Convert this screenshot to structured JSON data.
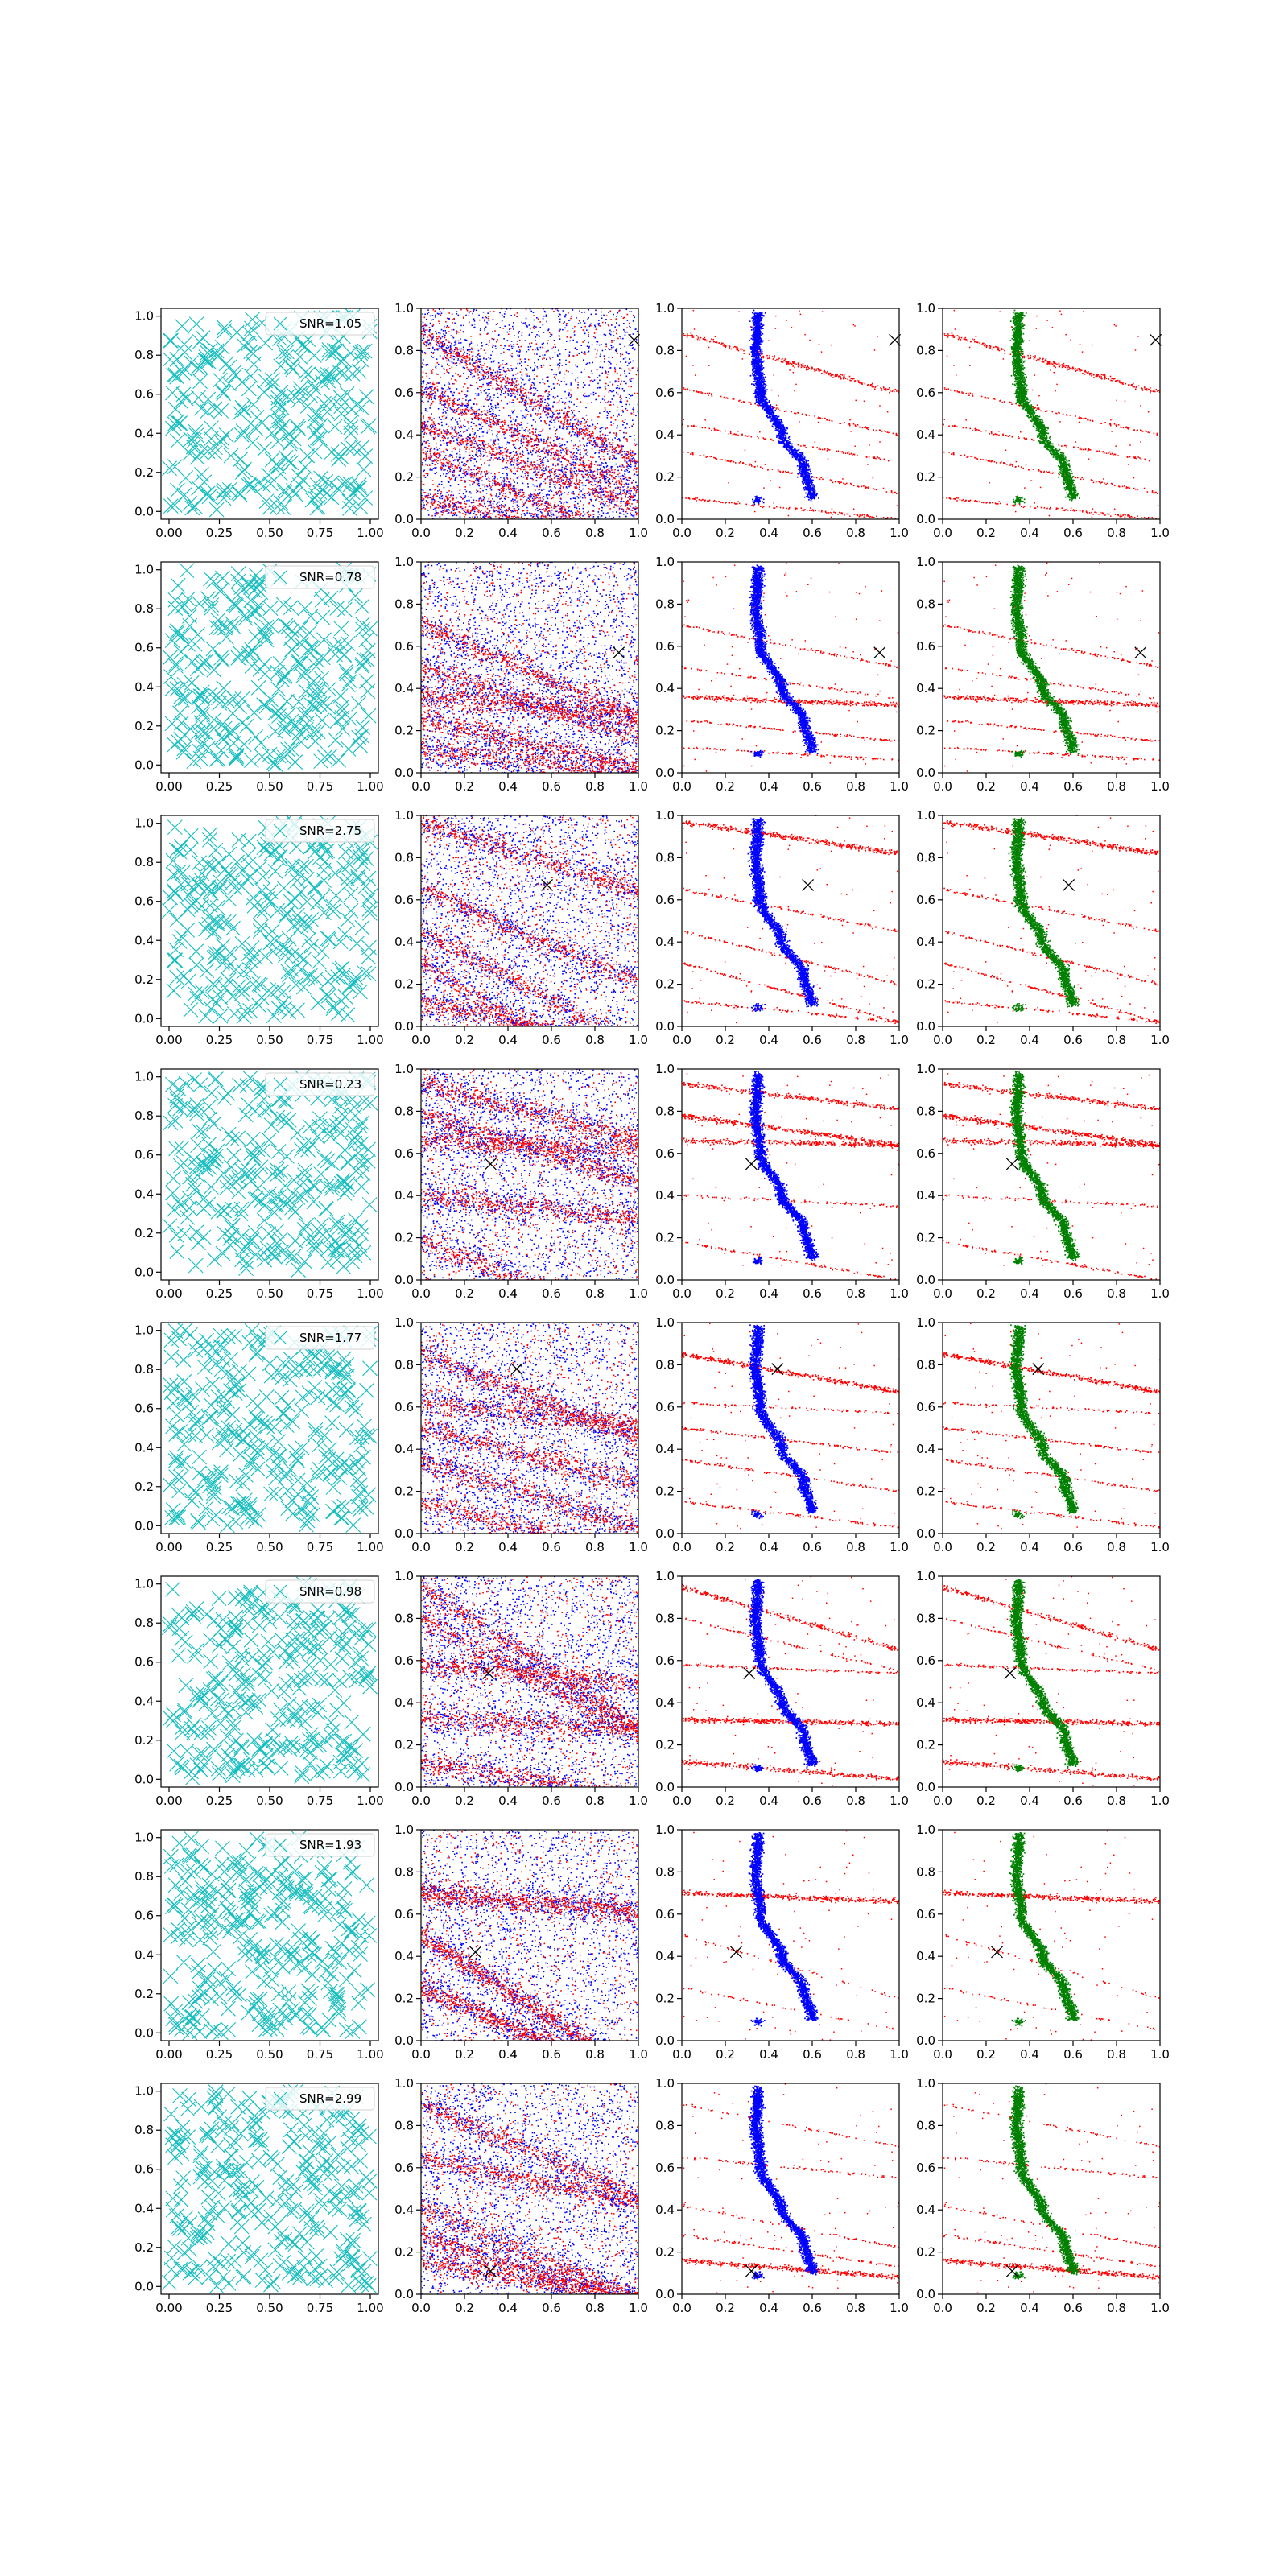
{
  "figure": {
    "rows": [
      {
        "snr_label": "SNR=1.05",
        "cross": [
          0.98,
          0.85
        ]
      },
      {
        "snr_label": "SNR=0.78",
        "cross": [
          0.91,
          0.57
        ]
      },
      {
        "snr_label": "SNR=2.75",
        "cross": [
          0.58,
          0.67
        ]
      },
      {
        "snr_label": "SNR=0.23",
        "cross": [
          0.32,
          0.55
        ]
      },
      {
        "snr_label": "SNR=1.77",
        "cross": [
          0.44,
          0.78
        ]
      },
      {
        "snr_label": "SNR=0.98",
        "cross": [
          0.31,
          0.54
        ]
      },
      {
        "snr_label": "SNR=1.93",
        "cross": [
          0.25,
          0.42
        ]
      },
      {
        "snr_label": "SNR=2.99",
        "cross": [
          0.32,
          0.11
        ]
      }
    ],
    "colors": {
      "random_markers": "#17bebf",
      "signal": "#0000ff",
      "background": "#ff0000",
      "fitted": "#008000",
      "cross": "#000000"
    }
  },
  "chart_data": [
    {
      "type": "scatter",
      "panel": "column-1",
      "description_visible": "random x markers with SNR legend",
      "xlim": [
        -0.04,
        1.04
      ],
      "ylim": [
        -0.04,
        1.04
      ],
      "xticks": [
        "0.00",
        "0.25",
        "0.50",
        "0.75",
        "1.00"
      ],
      "yticks": [
        "0.0",
        "0.2",
        "0.4",
        "0.6",
        "0.8",
        "1.0"
      ],
      "legend": "upper-right",
      "marker": "x"
    },
    {
      "type": "scatter",
      "panel": "column-2",
      "xlim": [
        0,
        1
      ],
      "ylim": [
        0,
        1
      ],
      "xticks": [
        "0.0",
        "0.2",
        "0.4",
        "0.6",
        "0.8",
        "1.0"
      ],
      "yticks": [
        "0.0",
        "0.2",
        "0.4",
        "0.6",
        "0.8",
        "1.0"
      ],
      "series": [
        "blue points",
        "red points",
        "x marker"
      ]
    },
    {
      "type": "scatter",
      "panel": "column-3",
      "xlim": [
        0,
        1
      ],
      "ylim": [
        0,
        1
      ],
      "xticks": [
        "0.0",
        "0.2",
        "0.4",
        "0.6",
        "0.8",
        "1.0"
      ],
      "yticks": [
        "0.0",
        "0.2",
        "0.4",
        "0.6",
        "0.8",
        "1.0"
      ],
      "curve_blue": [
        [
          0.6,
          0.1
        ],
        [
          0.56,
          0.25
        ],
        [
          0.46,
          0.4
        ],
        [
          0.36,
          0.6
        ],
        [
          0.34,
          0.8
        ],
        [
          0.35,
          0.93
        ]
      ]
    },
    {
      "type": "scatter",
      "panel": "column-4",
      "xlim": [
        0,
        1
      ],
      "ylim": [
        0,
        1
      ],
      "xticks": [
        "0.0",
        "0.2",
        "0.4",
        "0.6",
        "0.8",
        "1.0"
      ],
      "yticks": [
        "0.0",
        "0.2",
        "0.4",
        "0.6",
        "0.8",
        "1.0"
      ],
      "curve_green": [
        [
          0.6,
          0.1
        ],
        [
          0.56,
          0.25
        ],
        [
          0.46,
          0.4
        ],
        [
          0.36,
          0.6
        ],
        [
          0.34,
          0.8
        ],
        [
          0.35,
          0.93
        ]
      ]
    }
  ]
}
